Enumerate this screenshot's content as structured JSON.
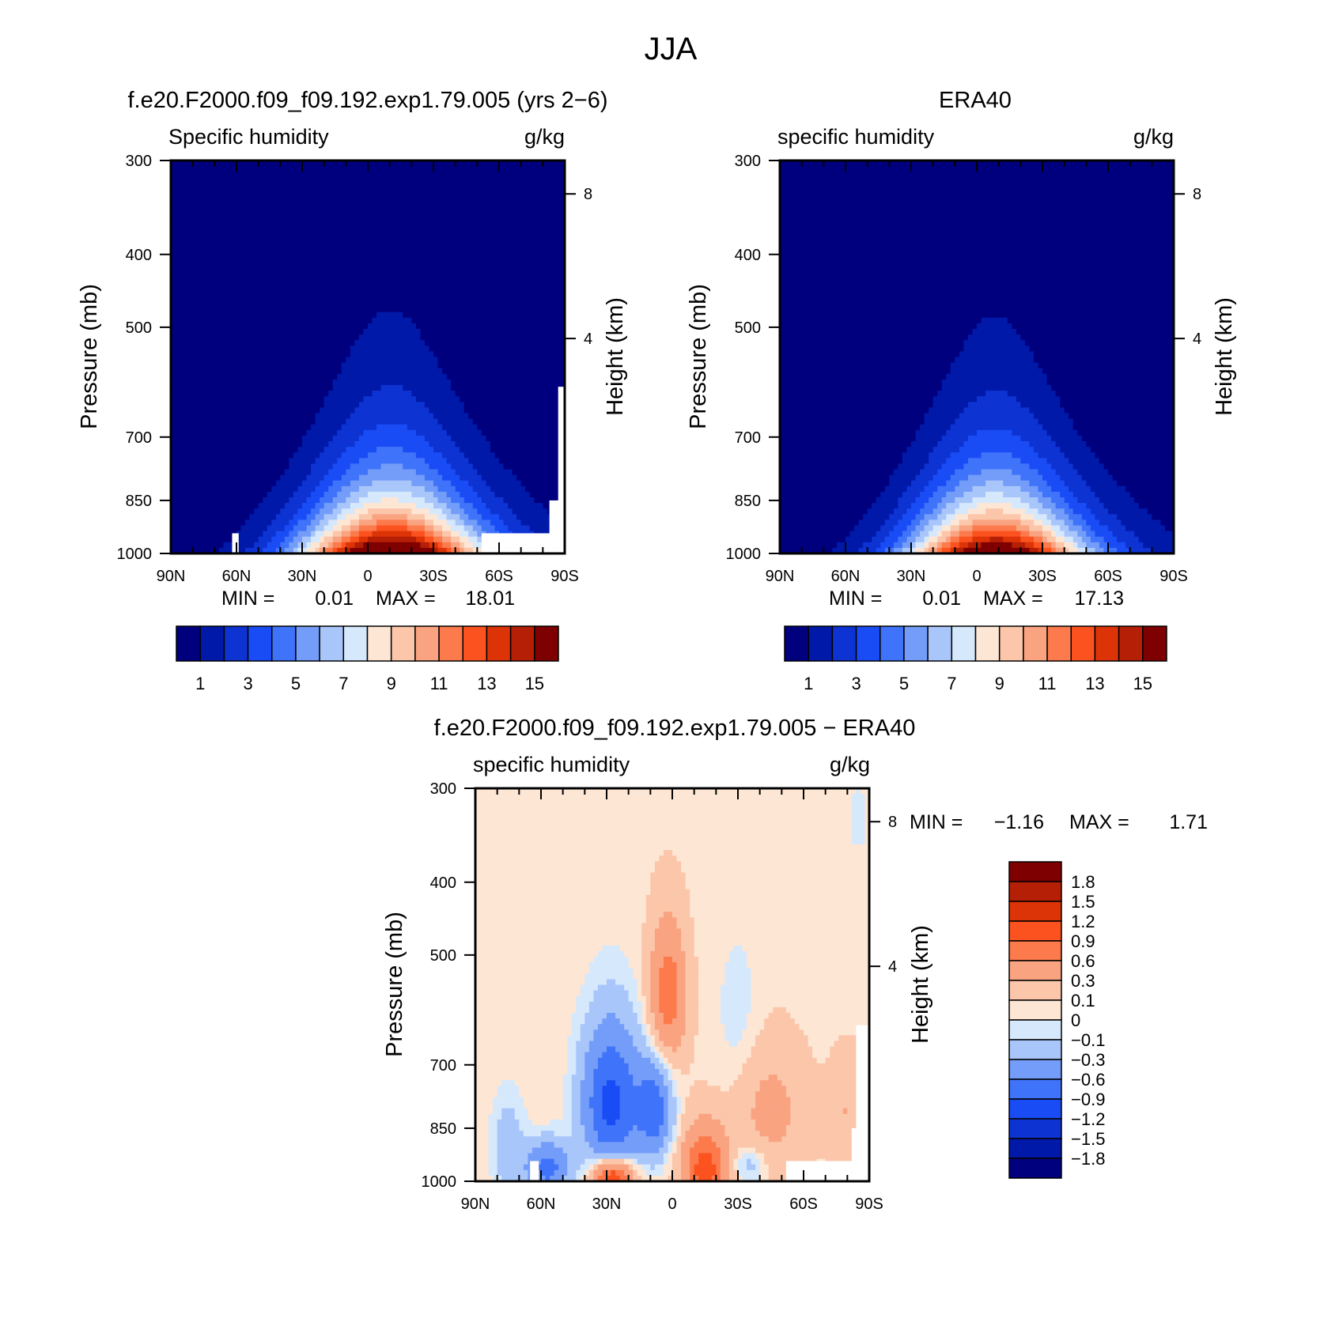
{
  "title": "JJA",
  "colors": {
    "seq": [
      "#00007f",
      "#0019a9",
      "#0d33d2",
      "#1a4cf5",
      "#3f73f9",
      "#739df8",
      "#a9c6fb",
      "#d6e8fc",
      "#fde6d4",
      "#fbc6aa",
      "#f9a381",
      "#fc7a4c",
      "#fb521f",
      "#dc3307",
      "#b41f06",
      "#7f0000"
    ],
    "div": [
      "#00007f",
      "#0019a9",
      "#0d33d2",
      "#1a4cf5",
      "#3f73f9",
      "#739df8",
      "#a9c6fb",
      "#d6e8fc",
      "#fde6d4",
      "#fbc6aa",
      "#f9a381",
      "#fc7a4c",
      "#fb521f",
      "#dc3307",
      "#b41f06",
      "#7f0000"
    ]
  },
  "chart_data": [
    {
      "type": "heatmap",
      "title": "f.e20.F2000.f09_f09.192.exp1.79.005 (yrs 2−6)",
      "subtitle_left": "Specific humidity",
      "subtitle_right": "g/kg",
      "xlabel": "",
      "ylabel": "Pressure (mb)",
      "ylabel_right": "Height (km)",
      "x_ticks": [
        "90N",
        "60N",
        "30N",
        "0",
        "30S",
        "60S",
        "90S"
      ],
      "y_ticks": [
        "300",
        "400",
        "500",
        "700",
        "850",
        "1000"
      ],
      "y_right_ticks": [
        "8",
        "4"
      ],
      "stats": {
        "min_label": "MIN =",
        "min": "0.01",
        "max_label": "MAX =",
        "max": "18.01"
      },
      "colorbar_labels": [
        "1",
        "3",
        "5",
        "7",
        "9",
        "11",
        "13",
        "15"
      ],
      "field": {
        "peak_lat": -10,
        "peak": 18.0,
        "top": 0.3,
        "width": 42,
        "skew": 0.0,
        "missing_south": true,
        "missing_north": true
      }
    },
    {
      "type": "heatmap",
      "title": "ERA40",
      "subtitle_left": "specific humidity",
      "subtitle_right": "g/kg",
      "xlabel": "",
      "ylabel": "Pressure (mb)",
      "ylabel_right": "Height (km)",
      "x_ticks": [
        "90N",
        "60N",
        "30N",
        "0",
        "30S",
        "60S",
        "90S"
      ],
      "y_ticks": [
        "300",
        "400",
        "500",
        "700",
        "850",
        "1000"
      ],
      "y_right_ticks": [
        "8",
        "4"
      ],
      "stats": {
        "min_label": "MIN =",
        "min": "0.01",
        "max_label": "MAX =",
        "max": "17.13"
      },
      "colorbar_labels": [
        "1",
        "3",
        "5",
        "7",
        "9",
        "11",
        "13",
        "15"
      ],
      "field": {
        "peak_lat": -8,
        "peak": 17.1,
        "top": 0.3,
        "width": 40,
        "skew": 0.0,
        "missing_south": false,
        "missing_north": false
      }
    },
    {
      "type": "heatmap",
      "title": "f.e20.F2000.f09_f09.192.exp1.79.005 − ERA40",
      "subtitle_left": "specific humidity",
      "subtitle_right": "g/kg",
      "xlabel": "",
      "ylabel": "Pressure (mb)",
      "ylabel_right": "Height (km)",
      "x_ticks": [
        "90N",
        "60N",
        "30N",
        "0",
        "30S",
        "60S",
        "90S"
      ],
      "y_ticks": [
        "300",
        "400",
        "500",
        "700",
        "850",
        "1000"
      ],
      "y_right_ticks": [
        "8",
        "4"
      ],
      "stats": {
        "min_label": "MIN =",
        "min": "−1.16",
        "max_label": "MAX =",
        "max": "1.71"
      },
      "colorbar_labels": [
        "1.8",
        "1.5",
        "1.2",
        "0.9",
        "0.6",
        "0.3",
        "0.1",
        "0",
        "−0.1",
        "−0.3",
        "−0.6",
        "−0.9",
        "−1.2",
        "−1.5",
        "−1.8"
      ],
      "levels": [
        -1.8,
        -1.5,
        -1.2,
        -0.9,
        -0.6,
        -0.3,
        -0.1,
        0,
        0.1,
        0.3,
        0.6,
        0.9,
        1.2,
        1.5,
        1.8
      ]
    }
  ]
}
